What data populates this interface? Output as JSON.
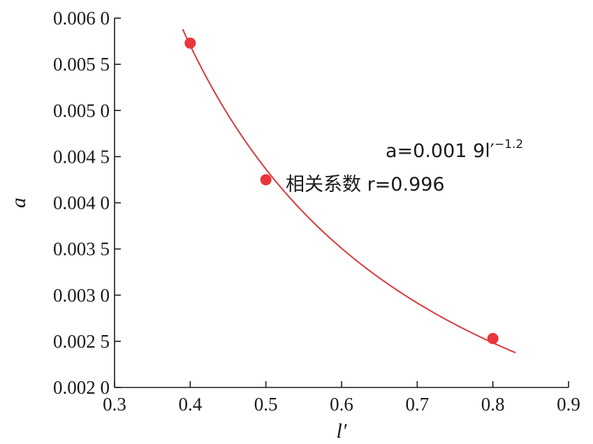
{
  "chart_data": {
    "type": "scatter",
    "title": "",
    "xlabel": "l′",
    "ylabel": "a",
    "xlim": [
      0.3,
      0.9
    ],
    "ylim": [
      0.002,
      0.006
    ],
    "x_ticks": [
      0.3,
      0.4,
      0.5,
      0.6,
      0.7,
      0.8,
      0.9
    ],
    "x_tick_labels": [
      "0.3",
      "0.4",
      "0.5",
      "0.6",
      "0.7",
      "0.8",
      "0.9"
    ],
    "y_ticks": [
      0.002,
      0.0025,
      0.003,
      0.0035,
      0.004,
      0.0045,
      0.005,
      0.0055,
      0.006
    ],
    "y_tick_labels": [
      "0.002 0",
      "0.002 5",
      "0.003 0",
      "0.003 5",
      "0.004 0",
      "0.004 5",
      "0.005 0",
      "0.005 5",
      "0.006 0"
    ],
    "grid": false,
    "points": [
      {
        "x": 0.4,
        "y": 0.00573
      },
      {
        "x": 0.5,
        "y": 0.00425
      },
      {
        "x": 0.8,
        "y": 0.00253
      }
    ],
    "fit": {
      "coefficient": 0.0019,
      "exponent": -1.2,
      "x_range": [
        0.39,
        0.83
      ],
      "equation_label": "a=0.001 9l′",
      "equation_exponent": "−1.2",
      "correlation_label": "相关系数 r=0.996"
    },
    "colors": {
      "points": "#e8363a",
      "fit_line": "#d9393b",
      "axes": "#1a1a1a"
    }
  }
}
